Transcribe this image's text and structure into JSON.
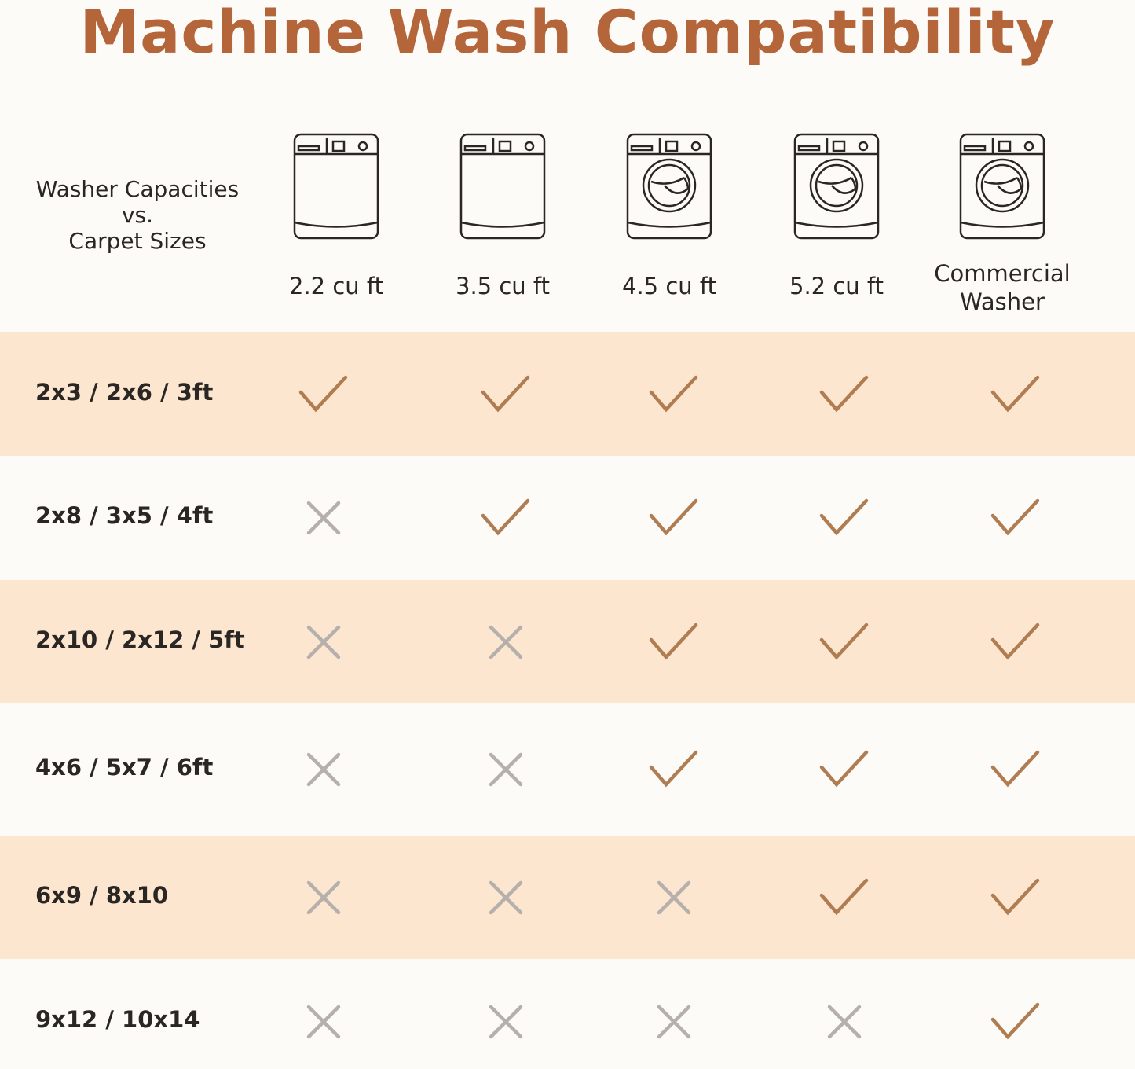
{
  "title": "Machine Wash Compatibility",
  "corner_label": {
    "line1": "Washer Capacities",
    "line2": "vs.",
    "line3": "Carpet Sizes"
  },
  "colors": {
    "title": "#b5653a",
    "band": "#fde6d0",
    "background": "#fdfbf8",
    "check": "#b07d52",
    "cross": "#b5b0ab"
  },
  "columns": [
    {
      "label": "2.2 cu ft",
      "icon": "top-load-washer-icon"
    },
    {
      "label": "3.5 cu ft",
      "icon": "top-load-washer-icon"
    },
    {
      "label": "4.5 cu ft",
      "icon": "front-load-washer-icon"
    },
    {
      "label": "5.2 cu ft",
      "icon": "front-load-washer-icon"
    },
    {
      "label": "Commercial Washer",
      "label_line1": "Commercial",
      "label_line2": "Washer",
      "icon": "front-load-washer-icon"
    }
  ],
  "rows": [
    {
      "label": "2x3 / 2x6 / 3ft",
      "compatible": [
        true,
        true,
        true,
        true,
        true
      ]
    },
    {
      "label": "2x8 / 3x5 / 4ft",
      "compatible": [
        false,
        true,
        true,
        true,
        true
      ]
    },
    {
      "label": "2x10 / 2x12 / 5ft",
      "compatible": [
        false,
        false,
        true,
        true,
        true
      ]
    },
    {
      "label": "4x6 / 5x7 / 6ft",
      "compatible": [
        false,
        false,
        true,
        true,
        true
      ]
    },
    {
      "label": "6x9 / 8x10",
      "compatible": [
        false,
        false,
        false,
        true,
        true
      ]
    },
    {
      "label": "9x12 / 10x14",
      "compatible": [
        false,
        false,
        false,
        false,
        true
      ]
    }
  ]
}
